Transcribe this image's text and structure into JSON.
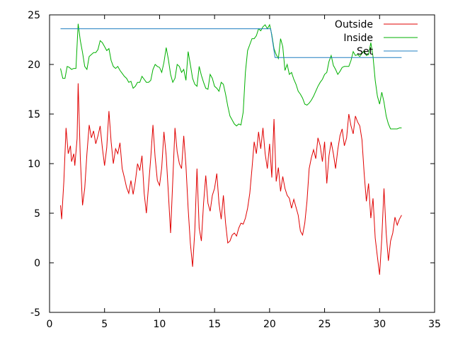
{
  "chart_data": {
    "type": "line",
    "xlim": [
      0,
      35
    ],
    "ylim": [
      -5,
      25
    ],
    "x_ticks": [
      "0",
      "5",
      "10",
      "15",
      "20",
      "25",
      "30",
      "35"
    ],
    "y_ticks": [
      "-5",
      "0",
      "5",
      "10",
      "15",
      "20",
      "25"
    ],
    "grid": false,
    "legend_position": "top-right",
    "series": [
      {
        "name": "Outside",
        "color": "#e00000",
        "points": [
          [
            1.0,
            5.8
          ],
          [
            1.1,
            4.4
          ],
          [
            1.3,
            8.2
          ],
          [
            1.5,
            13.6
          ],
          [
            1.7,
            11.0
          ],
          [
            1.9,
            11.8
          ],
          [
            2.0,
            10.2
          ],
          [
            2.2,
            11.0
          ],
          [
            2.3,
            9.8
          ],
          [
            2.5,
            12.5
          ],
          [
            2.6,
            18.1
          ],
          [
            2.8,
            10.5
          ],
          [
            3.0,
            5.8
          ],
          [
            3.2,
            7.5
          ],
          [
            3.4,
            11.0
          ],
          [
            3.6,
            13.9
          ],
          [
            3.8,
            12.6
          ],
          [
            4.0,
            13.3
          ],
          [
            4.2,
            12.0
          ],
          [
            4.4,
            12.8
          ],
          [
            4.6,
            13.8
          ],
          [
            4.8,
            11.6
          ],
          [
            5.0,
            9.8
          ],
          [
            5.2,
            11.6
          ],
          [
            5.4,
            15.3
          ],
          [
            5.6,
            12.2
          ],
          [
            5.8,
            10.0
          ],
          [
            6.0,
            11.5
          ],
          [
            6.2,
            11.0
          ],
          [
            6.4,
            12.1
          ],
          [
            6.6,
            9.5
          ],
          [
            6.8,
            8.6
          ],
          [
            7.0,
            7.6
          ],
          [
            7.2,
            7.0
          ],
          [
            7.4,
            8.3
          ],
          [
            7.6,
            6.9
          ],
          [
            7.8,
            8.2
          ],
          [
            8.0,
            10.0
          ],
          [
            8.2,
            9.3
          ],
          [
            8.4,
            10.8
          ],
          [
            8.6,
            7.0
          ],
          [
            8.8,
            5.0
          ],
          [
            9.0,
            7.8
          ],
          [
            9.2,
            10.6
          ],
          [
            9.4,
            13.9
          ],
          [
            9.6,
            10.6
          ],
          [
            9.8,
            8.3
          ],
          [
            10.0,
            7.8
          ],
          [
            10.2,
            9.6
          ],
          [
            10.4,
            13.2
          ],
          [
            10.6,
            10.8
          ],
          [
            10.8,
            7.0
          ],
          [
            11.0,
            3.0
          ],
          [
            11.2,
            8.3
          ],
          [
            11.4,
            13.6
          ],
          [
            11.6,
            11.2
          ],
          [
            11.8,
            10.0
          ],
          [
            12.0,
            9.5
          ],
          [
            12.2,
            12.8
          ],
          [
            12.4,
            9.8
          ],
          [
            12.6,
            5.5
          ],
          [
            12.8,
            2.0
          ],
          [
            13.0,
            -0.4
          ],
          [
            13.2,
            3.2
          ],
          [
            13.4,
            9.5
          ],
          [
            13.6,
            3.5
          ],
          [
            13.8,
            2.2
          ],
          [
            14.0,
            6.0
          ],
          [
            14.2,
            8.8
          ],
          [
            14.4,
            6.0
          ],
          [
            14.6,
            5.2
          ],
          [
            14.8,
            6.8
          ],
          [
            15.0,
            7.5
          ],
          [
            15.2,
            9.0
          ],
          [
            15.4,
            6.0
          ],
          [
            15.6,
            4.4
          ],
          [
            15.8,
            6.8
          ],
          [
            16.0,
            4.0
          ],
          [
            16.2,
            2.0
          ],
          [
            16.4,
            2.2
          ],
          [
            16.6,
            2.8
          ],
          [
            16.8,
            3.0
          ],
          [
            17.0,
            2.7
          ],
          [
            17.2,
            3.5
          ],
          [
            17.4,
            4.0
          ],
          [
            17.6,
            3.9
          ],
          [
            17.8,
            4.5
          ],
          [
            18.0,
            5.5
          ],
          [
            18.2,
            7.0
          ],
          [
            18.4,
            9.5
          ],
          [
            18.6,
            12.2
          ],
          [
            18.8,
            11.0
          ],
          [
            19.0,
            13.2
          ],
          [
            19.2,
            11.5
          ],
          [
            19.4,
            13.6
          ],
          [
            19.6,
            11.0
          ],
          [
            19.8,
            9.5
          ],
          [
            20.0,
            12.0
          ],
          [
            20.2,
            8.6
          ],
          [
            20.4,
            14.5
          ],
          [
            20.6,
            8.2
          ],
          [
            20.8,
            9.6
          ],
          [
            21.0,
            7.2
          ],
          [
            21.2,
            8.7
          ],
          [
            21.4,
            7.5
          ],
          [
            21.6,
            6.8
          ],
          [
            21.8,
            6.5
          ],
          [
            22.0,
            5.5
          ],
          [
            22.2,
            6.4
          ],
          [
            22.4,
            5.6
          ],
          [
            22.6,
            4.8
          ],
          [
            22.8,
            3.2
          ],
          [
            23.0,
            2.8
          ],
          [
            23.2,
            4.0
          ],
          [
            23.4,
            6.2
          ],
          [
            23.6,
            9.5
          ],
          [
            23.8,
            10.6
          ],
          [
            24.0,
            11.4
          ],
          [
            24.2,
            10.5
          ],
          [
            24.4,
            12.6
          ],
          [
            24.6,
            11.8
          ],
          [
            24.8,
            10.2
          ],
          [
            25.0,
            12.2
          ],
          [
            25.2,
            8.0
          ],
          [
            25.4,
            10.8
          ],
          [
            25.6,
            12.2
          ],
          [
            25.8,
            11.0
          ],
          [
            26.0,
            9.5
          ],
          [
            26.2,
            11.4
          ],
          [
            26.4,
            12.8
          ],
          [
            26.6,
            13.5
          ],
          [
            26.8,
            11.8
          ],
          [
            27.0,
            12.6
          ],
          [
            27.2,
            15.0
          ],
          [
            27.4,
            13.8
          ],
          [
            27.6,
            13.0
          ],
          [
            27.8,
            14.8
          ],
          [
            28.0,
            14.2
          ],
          [
            28.2,
            13.8
          ],
          [
            28.4,
            12.4
          ],
          [
            28.6,
            9.0
          ],
          [
            28.8,
            6.2
          ],
          [
            29.0,
            8.0
          ],
          [
            29.2,
            4.5
          ],
          [
            29.4,
            6.5
          ],
          [
            29.6,
            2.5
          ],
          [
            29.8,
            0.6
          ],
          [
            30.0,
            -1.2
          ],
          [
            30.2,
            2.5
          ],
          [
            30.4,
            7.5
          ],
          [
            30.6,
            3.0
          ],
          [
            30.8,
            0.2
          ],
          [
            31.0,
            2.2
          ],
          [
            31.2,
            3.0
          ],
          [
            31.4,
            4.6
          ],
          [
            31.6,
            3.8
          ],
          [
            31.8,
            4.4
          ],
          [
            32.0,
            4.8
          ]
        ]
      },
      {
        "name": "Inside",
        "color": "#00b000",
        "points": [
          [
            1.0,
            19.6
          ],
          [
            1.2,
            18.6
          ],
          [
            1.4,
            18.6
          ],
          [
            1.6,
            19.8
          ],
          [
            1.8,
            19.7
          ],
          [
            2.0,
            19.5
          ],
          [
            2.2,
            19.6
          ],
          [
            2.4,
            19.6
          ],
          [
            2.6,
            24.1
          ],
          [
            2.8,
            22.4
          ],
          [
            3.0,
            21.2
          ],
          [
            3.2,
            19.8
          ],
          [
            3.4,
            19.5
          ],
          [
            3.6,
            20.8
          ],
          [
            3.8,
            21.0
          ],
          [
            4.0,
            21.2
          ],
          [
            4.2,
            21.2
          ],
          [
            4.4,
            21.5
          ],
          [
            4.6,
            22.4
          ],
          [
            4.8,
            22.2
          ],
          [
            5.0,
            21.8
          ],
          [
            5.2,
            21.4
          ],
          [
            5.4,
            21.6
          ],
          [
            5.6,
            20.4
          ],
          [
            5.8,
            19.8
          ],
          [
            6.0,
            19.6
          ],
          [
            6.2,
            19.8
          ],
          [
            6.4,
            19.4
          ],
          [
            6.6,
            19.1
          ],
          [
            6.8,
            18.8
          ],
          [
            7.0,
            18.6
          ],
          [
            7.2,
            18.2
          ],
          [
            7.4,
            18.3
          ],
          [
            7.6,
            17.6
          ],
          [
            7.8,
            17.8
          ],
          [
            8.0,
            18.2
          ],
          [
            8.2,
            18.2
          ],
          [
            8.4,
            18.8
          ],
          [
            8.6,
            18.5
          ],
          [
            8.8,
            18.2
          ],
          [
            9.0,
            18.2
          ],
          [
            9.2,
            18.4
          ],
          [
            9.4,
            19.5
          ],
          [
            9.6,
            20.0
          ],
          [
            9.8,
            19.8
          ],
          [
            10.0,
            19.7
          ],
          [
            10.2,
            19.2
          ],
          [
            10.4,
            20.2
          ],
          [
            10.6,
            21.7
          ],
          [
            10.8,
            20.5
          ],
          [
            11.0,
            19.0
          ],
          [
            11.2,
            18.2
          ],
          [
            11.4,
            18.6
          ],
          [
            11.6,
            20.0
          ],
          [
            11.8,
            19.8
          ],
          [
            12.0,
            19.2
          ],
          [
            12.2,
            19.5
          ],
          [
            12.4,
            18.4
          ],
          [
            12.6,
            21.3
          ],
          [
            12.8,
            20.0
          ],
          [
            13.0,
            18.6
          ],
          [
            13.2,
            18.0
          ],
          [
            13.4,
            17.8
          ],
          [
            13.6,
            19.8
          ],
          [
            13.8,
            18.9
          ],
          [
            14.0,
            18.2
          ],
          [
            14.2,
            17.6
          ],
          [
            14.4,
            17.5
          ],
          [
            14.6,
            19.0
          ],
          [
            14.8,
            18.6
          ],
          [
            15.0,
            17.8
          ],
          [
            15.2,
            17.6
          ],
          [
            15.4,
            17.3
          ],
          [
            15.6,
            18.2
          ],
          [
            15.8,
            18.0
          ],
          [
            16.0,
            17.0
          ],
          [
            16.2,
            15.8
          ],
          [
            16.4,
            14.8
          ],
          [
            16.6,
            14.4
          ],
          [
            16.8,
            14.0
          ],
          [
            17.0,
            13.8
          ],
          [
            17.2,
            14.0
          ],
          [
            17.4,
            13.9
          ],
          [
            17.6,
            15.2
          ],
          [
            17.8,
            19.2
          ],
          [
            18.0,
            21.4
          ],
          [
            18.2,
            22.0
          ],
          [
            18.4,
            22.6
          ],
          [
            18.6,
            22.6
          ],
          [
            18.8,
            22.9
          ],
          [
            19.0,
            23.6
          ],
          [
            19.2,
            23.4
          ],
          [
            19.4,
            23.8
          ],
          [
            19.6,
            24.0
          ],
          [
            19.8,
            23.6
          ],
          [
            20.0,
            24.0
          ],
          [
            20.2,
            23.0
          ],
          [
            20.4,
            21.6
          ],
          [
            20.6,
            21.0
          ],
          [
            20.8,
            20.6
          ],
          [
            21.0,
            22.6
          ],
          [
            21.2,
            21.8
          ],
          [
            21.4,
            19.4
          ],
          [
            21.6,
            20.0
          ],
          [
            21.8,
            19.0
          ],
          [
            22.0,
            19.2
          ],
          [
            22.2,
            18.5
          ],
          [
            22.4,
            18.0
          ],
          [
            22.6,
            17.3
          ],
          [
            22.8,
            17.0
          ],
          [
            23.0,
            16.6
          ],
          [
            23.2,
            16.0
          ],
          [
            23.4,
            15.9
          ],
          [
            23.6,
            16.1
          ],
          [
            23.8,
            16.4
          ],
          [
            24.0,
            16.8
          ],
          [
            24.2,
            17.3
          ],
          [
            24.4,
            17.8
          ],
          [
            24.6,
            18.2
          ],
          [
            24.8,
            18.5
          ],
          [
            25.0,
            19.0
          ],
          [
            25.2,
            19.2
          ],
          [
            25.4,
            20.3
          ],
          [
            25.6,
            20.9
          ],
          [
            25.8,
            19.9
          ],
          [
            26.0,
            19.5
          ],
          [
            26.2,
            19.0
          ],
          [
            26.4,
            19.3
          ],
          [
            26.6,
            19.7
          ],
          [
            26.8,
            19.8
          ],
          [
            27.0,
            19.8
          ],
          [
            27.2,
            19.8
          ],
          [
            27.4,
            20.4
          ],
          [
            27.6,
            21.3
          ],
          [
            27.8,
            20.9
          ],
          [
            28.0,
            21.0
          ],
          [
            28.2,
            20.8
          ],
          [
            28.4,
            21.1
          ],
          [
            28.6,
            21.4
          ],
          [
            28.8,
            20.9
          ],
          [
            29.0,
            21.0
          ],
          [
            29.2,
            22.2
          ],
          [
            29.4,
            20.8
          ],
          [
            29.6,
            18.4
          ],
          [
            29.8,
            16.8
          ],
          [
            30.0,
            16.0
          ],
          [
            30.2,
            17.2
          ],
          [
            30.4,
            16.2
          ],
          [
            30.6,
            14.8
          ],
          [
            30.8,
            14.0
          ],
          [
            31.0,
            13.5
          ],
          [
            31.2,
            13.5
          ],
          [
            31.4,
            13.5
          ],
          [
            31.6,
            13.5
          ],
          [
            31.8,
            13.6
          ],
          [
            32.0,
            13.6
          ]
        ]
      },
      {
        "name": "Set",
        "color": "#1f7fc0",
        "points": [
          [
            1.0,
            23.6
          ],
          [
            20.1,
            23.6
          ],
          [
            20.5,
            20.7
          ],
          [
            32.0,
            20.7
          ]
        ]
      }
    ]
  }
}
